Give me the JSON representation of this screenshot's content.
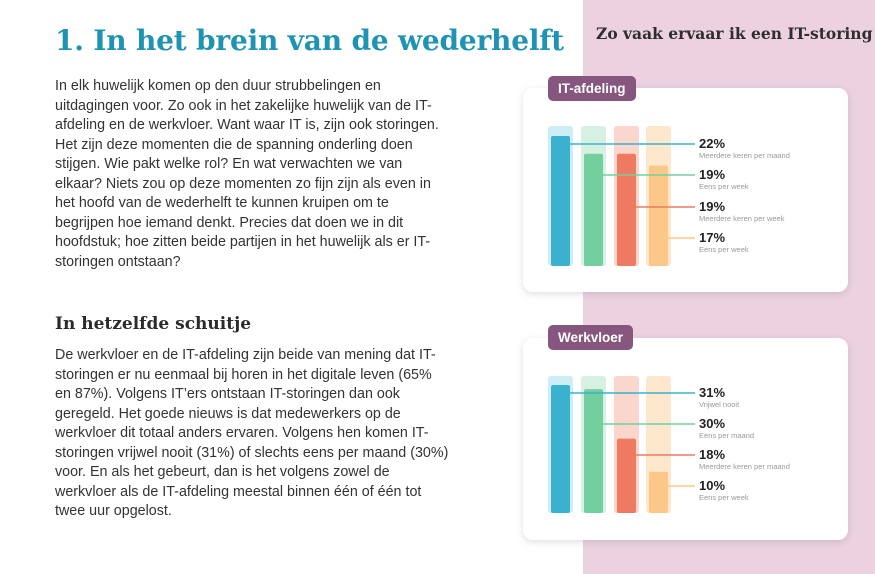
{
  "main": {
    "title": "1. In het brein van de wederhelft",
    "intro": "In elk huwelijk komen op den duur strubbelingen en uitdagingen voor. Zo ook in het zakelijke huwelijk van de IT-afdeling en de werkvloer. Want waar IT is, zijn ook storingen. Het zijn deze momenten die de spanning onderling doen stijgen. Wie pakt welke rol? En wat verwachten we van elkaar? Niets zou op deze momenten zo fijn zijn als even in het hoofd van de wederhelft te kunnen kruipen om te begrijpen hoe iemand denkt. Precies dat doen we in dit hoofdstuk; hoe zitten beide partijen in het huwelijk als er IT-storingen ontstaan?",
    "subheading": "In hetzelfde schuitje",
    "paragraph": "De werkvloer en de IT-afdeling zijn beide van mening dat IT-storingen er nu eenmaal bij horen in het digitale leven (65% en 87%).  Volgens IT’ers ontstaan IT-storingen dan ook geregeld. Het goede nieuws is dat medewerkers op de werkvloer dit totaal anders ervaren. Volgens hen komen IT-storingen vrijwel nooit (31%) of slechts eens per maand (30%) voor. En als het gebeurt, dan is het volgens zowel de werkvloer als de IT-afdeling meestal binnen één of één tot twee uur opgelost."
  },
  "colors": {
    "title": "#1e93b3",
    "sidebar": "#ecd2e0",
    "pill": "#87567e",
    "bars": [
      "#3ab2cf",
      "#74cf9e",
      "#ee7b60",
      "#fbc88a"
    ],
    "tracks": [
      "#cdeef6",
      "#d6f1e2",
      "#fbd6cd",
      "#fde7cd"
    ]
  },
  "chart_data": [
    {
      "type": "bar",
      "title": "Zo vaak ervaar ik een IT-storing",
      "group": "IT-afdeling",
      "ylim": [
        0,
        25
      ],
      "series": [
        {
          "value": 22,
          "label": "22%",
          "caption": "Meerdere keren per maand"
        },
        {
          "value": 19,
          "label": "19%",
          "caption": "Eens per week"
        },
        {
          "value": 19,
          "label": "19%",
          "caption": "Meerdere keren per week"
        },
        {
          "value": 17,
          "label": "17%",
          "caption": "Eens per week"
        }
      ]
    },
    {
      "type": "bar",
      "title": "Zo vaak ervaar ik een IT-storing",
      "group": "Werkvloer",
      "ylim": [
        0,
        35
      ],
      "series": [
        {
          "value": 31,
          "label": "31%",
          "caption": "Vrijwel nooit"
        },
        {
          "value": 30,
          "label": "30%",
          "caption": "Eens per maand"
        },
        {
          "value": 18,
          "label": "18%",
          "caption": "Meerdere keren per maand"
        },
        {
          "value": 10,
          "label": "10%",
          "caption": "Eens per week"
        }
      ]
    }
  ]
}
